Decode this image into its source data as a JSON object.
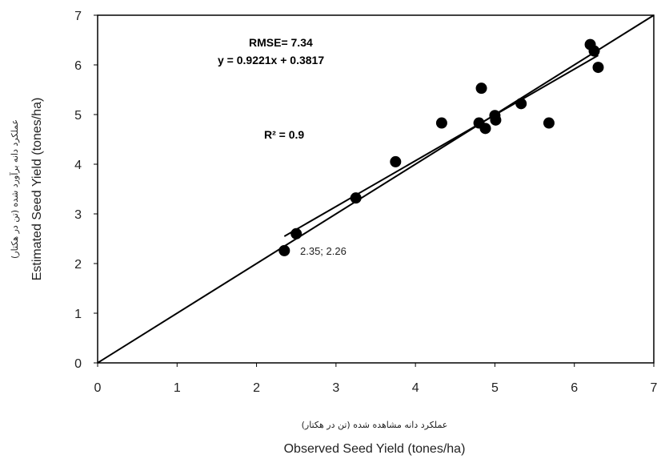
{
  "chart_data": {
    "type": "scatter",
    "title": "",
    "xlabel": "Observed Seed Yield (tones/ha)",
    "xlabel_fa": "عملکرد دانه مشاهده شده (تن در هکتار)",
    "ylabel": "Estimated Seed Yield (tones/ha)",
    "ylabel_fa": "عملکرد دانه برآورد شده (تن در هکتار)",
    "xlim": [
      0,
      7
    ],
    "ylim": [
      0,
      7
    ],
    "xticks": [
      "0",
      "1",
      "2",
      "3",
      "4",
      "5",
      "6",
      "7"
    ],
    "yticks": [
      "0",
      "1",
      "2",
      "3",
      "4",
      "5",
      "6",
      "7"
    ],
    "grid": false,
    "legend": "none",
    "points": [
      {
        "x": 2.35,
        "y": 2.26
      },
      {
        "x": 2.5,
        "y": 2.6
      },
      {
        "x": 3.25,
        "y": 3.32
      },
      {
        "x": 3.75,
        "y": 4.05
      },
      {
        "x": 4.33,
        "y": 4.83
      },
      {
        "x": 4.8,
        "y": 4.83
      },
      {
        "x": 4.83,
        "y": 5.53
      },
      {
        "x": 4.88,
        "y": 4.72
      },
      {
        "x": 5.0,
        "y": 4.98
      },
      {
        "x": 5.01,
        "y": 4.89
      },
      {
        "x": 5.33,
        "y": 5.22
      },
      {
        "x": 5.68,
        "y": 4.83
      },
      {
        "x": 6.2,
        "y": 6.41
      },
      {
        "x": 6.25,
        "y": 6.28
      },
      {
        "x": 6.3,
        "y": 5.95
      }
    ],
    "identity_line": {
      "from": [
        0,
        0
      ],
      "to": [
        7,
        7
      ]
    },
    "regression": {
      "slope": 0.9221,
      "intercept": 0.3817,
      "x_range": [
        2.35,
        6.3
      ]
    },
    "annotations": {
      "rmse": "RMSE= 7.34",
      "equation": "y = 0.9221x + 0.3817",
      "r2": "R² = 0.9",
      "point_label": "2.35; 2.26"
    },
    "colors": {
      "marker": "#000000",
      "line": "#000000",
      "axis": "#000000"
    }
  }
}
